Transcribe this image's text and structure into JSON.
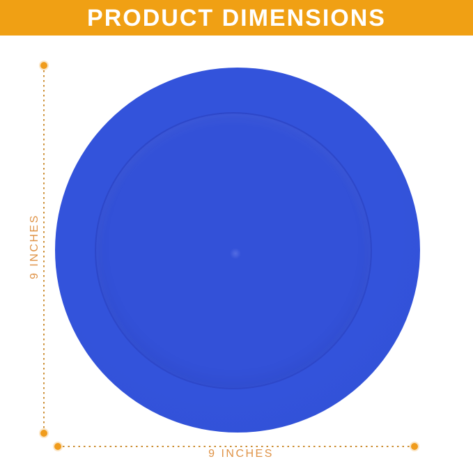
{
  "header": {
    "title": "PRODUCT DIMENSIONS"
  },
  "dimensions": {
    "height_label": "9 INCHES",
    "width_label": "9 INCHES"
  },
  "colors": {
    "page_bg": "#FFFFFF",
    "banner_bg": "#F0A014",
    "banner_text": "#FFFFFF",
    "disc_outer": "#3353DB",
    "disc_inner": "#3351D8",
    "disc_ring": "#2A46C0",
    "dim_dots": "#CC8E33",
    "dim_endpoint": "#F09C1C",
    "dim_label": "#DF9245"
  }
}
